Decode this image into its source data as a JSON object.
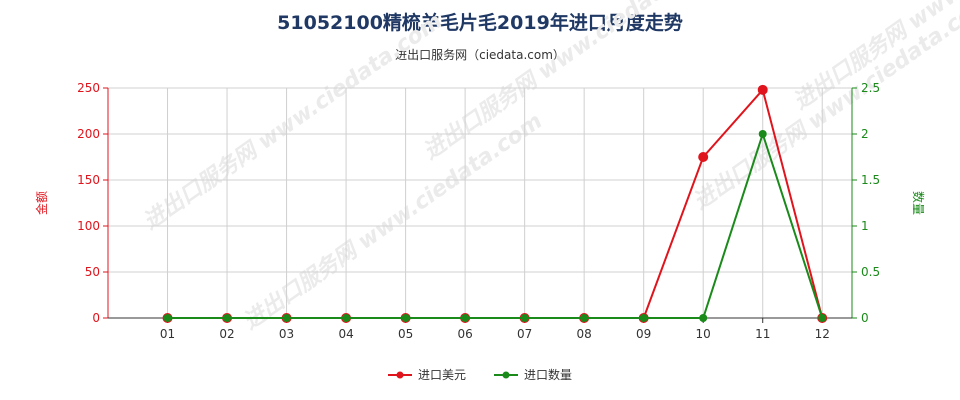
{
  "header": {
    "title": "51052100精梳羊毛片毛2019年进口月度走势",
    "subtitle": "进出口服务网（ciedata.com）"
  },
  "watermark": "进出口服务网 www.ciedata.com",
  "colors": {
    "amount": "#e0141c",
    "quantity": "#1a8a1a",
    "grid": "#d0d0d0"
  },
  "chart_data": {
    "type": "line",
    "x": [
      "01",
      "02",
      "03",
      "04",
      "05",
      "06",
      "07",
      "08",
      "09",
      "10",
      "11",
      "12"
    ],
    "y_left": {
      "label": "金额",
      "ticks": [
        "0",
        "50",
        "100",
        "150",
        "200",
        "250"
      ],
      "range": [
        0,
        250
      ]
    },
    "y_right": {
      "label": "数量",
      "ticks": [
        "0",
        "0.5",
        "1",
        "1.5",
        "2",
        "2.5"
      ],
      "range": [
        0,
        2.5
      ]
    },
    "series": [
      {
        "name": "进口美元",
        "axis": "left",
        "values": [
          0,
          0,
          0,
          0,
          0,
          0,
          0,
          0,
          0,
          175,
          248,
          0
        ]
      },
      {
        "name": "进口数量",
        "axis": "right",
        "values": [
          0,
          0,
          0,
          0,
          0,
          0,
          0,
          0,
          0,
          0,
          2,
          0
        ]
      }
    ],
    "legend_position": "bottom-center",
    "grid": true
  }
}
